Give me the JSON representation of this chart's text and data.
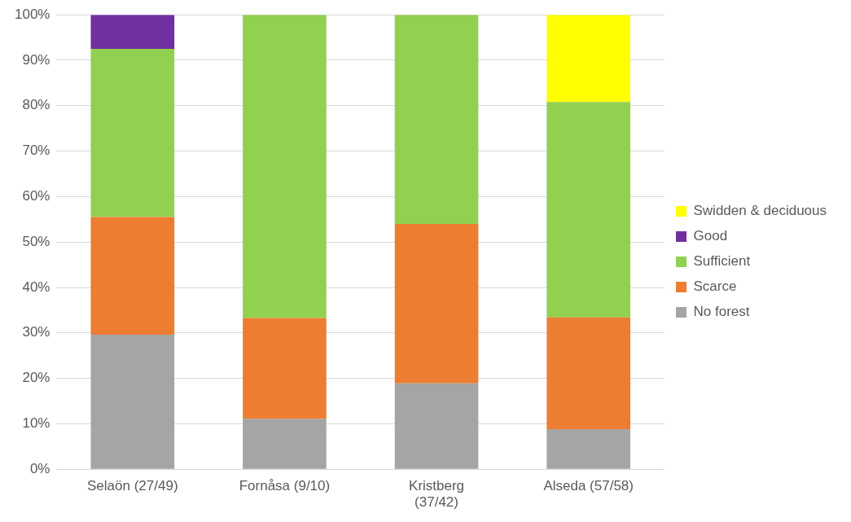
{
  "chart_data": {
    "type": "bar",
    "stacked": true,
    "categories": [
      "Selaön (27/49)",
      "Fornåsa (9/10)",
      "Kristberg (37/42)",
      "Alseda (57/58)"
    ],
    "series": [
      {
        "name": "No forest",
        "color": "#a5a5a5",
        "values": [
          29.6,
          11.1,
          18.9,
          8.8
        ]
      },
      {
        "name": "Scarce",
        "color": "#ed7d31",
        "values": [
          25.9,
          22.2,
          35.1,
          24.6
        ]
      },
      {
        "name": "Sufficient",
        "color": "#92d050",
        "values": [
          37.0,
          66.7,
          46.0,
          47.4
        ]
      },
      {
        "name": "Good",
        "color": "#7030a0",
        "values": [
          7.5,
          null,
          null,
          null
        ]
      },
      {
        "name": "Swidden & deciduous",
        "color": "#ffff00",
        "values": [
          null,
          null,
          null,
          19.2
        ]
      }
    ],
    "ylim": [
      0,
      100
    ],
    "yticks": [
      {
        "value": 0,
        "label": "0%"
      },
      {
        "value": 10,
        "label": "10%"
      },
      {
        "value": 20,
        "label": "20%"
      },
      {
        "value": 30,
        "label": "30%"
      },
      {
        "value": 40,
        "label": "40%"
      },
      {
        "value": 50,
        "label": "50%"
      },
      {
        "value": 60,
        "label": "60%"
      },
      {
        "value": 70,
        "label": "70%"
      },
      {
        "value": 80,
        "label": "80%"
      },
      {
        "value": 90,
        "label": "90%"
      },
      {
        "value": 100,
        "label": "100%"
      }
    ],
    "grid": "y",
    "legend": "right"
  }
}
